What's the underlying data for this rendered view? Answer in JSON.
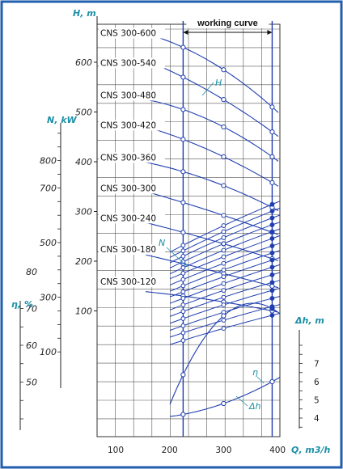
{
  "chart_data": {
    "type": "line",
    "x": [
      225,
      300,
      390
    ],
    "xlabel": "Q, m3/h",
    "xticks": [
      "100",
      "200",
      "300",
      "400"
    ],
    "xlim": [
      50,
      430
    ],
    "axes": {
      "H": {
        "label": "H, m",
        "ticks": [
          "100",
          "200",
          "300",
          "400",
          "500",
          "600"
        ]
      },
      "N": {
        "label": "N, kW",
        "ticks": [
          "100",
          "300",
          "500",
          "700",
          "800"
        ]
      },
      "eta": {
        "label": "η, %",
        "ticks": [
          "50",
          "60",
          "70",
          "80"
        ]
      },
      "dh": {
        "label": "Δh, m",
        "ticks": [
          "4",
          "5",
          "6",
          "7"
        ]
      }
    },
    "working_curve_label": "working curve",
    "head_series": [
      {
        "name": "CNS 300-600",
        "values": [
          630,
          585,
          510
        ]
      },
      {
        "name": "CNS 300-540",
        "values": [
          570,
          525,
          460
        ]
      },
      {
        "name": "CNS 300-480",
        "values": [
          505,
          470,
          410
        ]
      },
      {
        "name": "CNS 300-420",
        "values": [
          445,
          410,
          358
        ]
      },
      {
        "name": "CNS 300-360",
        "values": [
          380,
          352,
          308
        ]
      },
      {
        "name": "CNS 300-300",
        "values": [
          318,
          292,
          258
        ]
      },
      {
        "name": "CNS 300-240",
        "values": [
          258,
          235,
          205
        ]
      },
      {
        "name": "CNS 300-180",
        "values": [
          195,
          175,
          150
        ]
      },
      {
        "name": "CNS 300-120",
        "values": [
          130,
          118,
          100
        ]
      }
    ],
    "power_values": [
      [
        490,
        562,
        640
      ],
      [
        470,
        540,
        615
      ],
      [
        450,
        518,
        590
      ],
      [
        430,
        496,
        565
      ],
      [
        408,
        472,
        540
      ],
      [
        388,
        448,
        515
      ],
      [
        365,
        424,
        488
      ],
      [
        342,
        400,
        462
      ],
      [
        320,
        375,
        436
      ],
      [
        296,
        350,
        410
      ],
      [
        272,
        325,
        382
      ],
      [
        248,
        300,
        354
      ],
      [
        222,
        272,
        325
      ],
      [
        196,
        245,
        296
      ],
      [
        170,
        216,
        266
      ],
      [
        142,
        186,
        234
      ]
    ],
    "efficiency_values": [
      52,
      68,
      70
    ],
    "npsh_values": [
      4.2,
      4.8,
      6.0
    ],
    "curve_labels": {
      "head": "H",
      "power": "N",
      "efficiency": "η",
      "npsh": "Δh"
    }
  }
}
